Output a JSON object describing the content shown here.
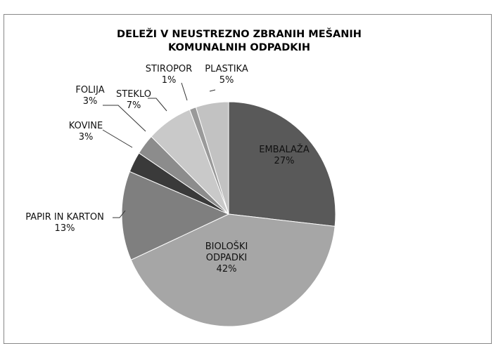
{
  "chart_data": {
    "type": "pie",
    "title": "DELEŽI V NEUSTREZNO ZBRANIH MEŠANIH KOMUNALNIH ODPADKIH",
    "categories": [
      "EMBALAŽA",
      "BIOLOŠKI ODPADKI",
      "PAPIR IN KARTON",
      "KOVINE",
      "FOLIJA",
      "STEKLO",
      "STIROPOR",
      "PLASTIKA"
    ],
    "values": [
      27,
      42,
      13,
      3,
      3,
      7,
      1,
      5
    ],
    "value_labels": [
      "27%",
      "42%",
      "13%",
      "3%",
      "3%",
      "7%",
      "1%",
      "5%"
    ],
    "colors": [
      "#595959",
      "#a6a6a6",
      "#7f7f7f",
      "#3a3a3a",
      "#8c8c8c",
      "#c9c9c9",
      "#9a9a9a",
      "#c2c2c2"
    ]
  }
}
